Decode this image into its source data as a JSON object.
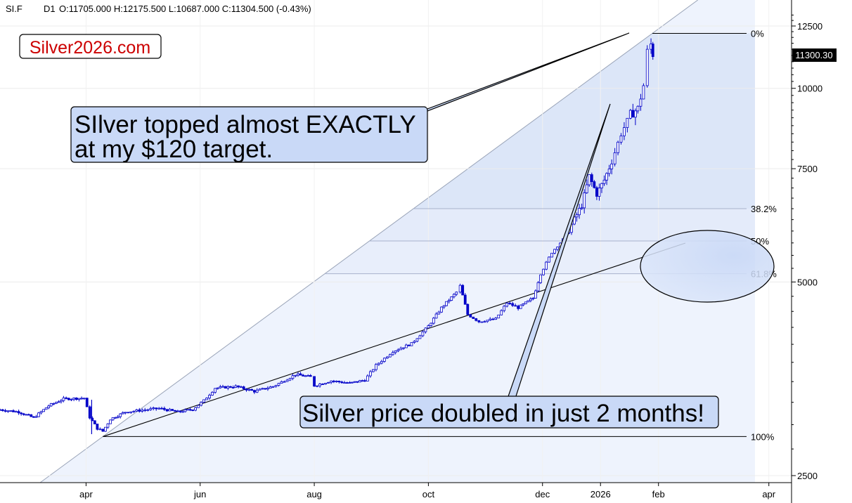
{
  "header": {
    "symbol": "SI.F",
    "timeframe": "D1",
    "ohlc": "O:11705.000  H:12175.500  L:10687.000  C:11304.500  (-0.43%)"
  },
  "brand": "Silver2026.com",
  "current_price": "11300.30",
  "annotations": [
    {
      "line1": "SIlver topped almost EXACTLY",
      "line2": "at my $120 target."
    },
    {
      "line1": "Silver price doubled in just 2 months!"
    }
  ],
  "fib_levels": [
    {
      "label": "0%",
      "price": 12175.5
    },
    {
      "label": "38.2%",
      "price": 6500
    },
    {
      "label": "50%",
      "price": 5790
    },
    {
      "label": "61.8%",
      "price": 5150
    },
    {
      "label": "100%",
      "price": 2875
    }
  ],
  "chart_data": {
    "type": "candlestick",
    "y_scale": "log",
    "ylim": [
      2440,
      13300
    ],
    "y_ticks": [
      {
        "value": 2500,
        "label": "2500"
      },
      {
        "value": 5000,
        "label": "5000"
      },
      {
        "value": 7500,
        "label": "7500"
      },
      {
        "value": 10000,
        "label": "10000"
      },
      {
        "value": 12500,
        "label": "12500"
      }
    ],
    "x_ticks": [
      {
        "date": "2025-04-01",
        "label": "apr"
      },
      {
        "date": "2025-06-01",
        "label": "jun"
      },
      {
        "date": "2025-08-01",
        "label": "aug"
      },
      {
        "date": "2025-10-01",
        "label": "oct"
      },
      {
        "date": "2025-12-01",
        "label": "dec"
      },
      {
        "date": "2026-01-01",
        "label": "2026"
      },
      {
        "date": "2026-02-01",
        "label": "feb"
      },
      {
        "date": "2026-04-01",
        "label": "apr"
      }
    ],
    "xlim": [
      "2025-02-14",
      "2026-04-12"
    ],
    "series": [
      {
        "values": [
          [
            "2025-02-14",
            3165
          ],
          [
            "2025-02-24",
            3140
          ],
          [
            "2025-03-04",
            3075
          ],
          [
            "2025-03-12",
            3210
          ],
          [
            "2025-03-20",
            3290
          ],
          [
            "2025-03-31",
            3300
          ],
          [
            "2025-04-03",
            3080
          ],
          [
            "2025-04-07",
            2960
          ],
          [
            "2025-04-10",
            2930
          ],
          [
            "2025-04-14",
            3060
          ],
          [
            "2025-04-22",
            3140
          ],
          [
            "2025-05-01",
            3160
          ],
          [
            "2025-05-10",
            3180
          ],
          [
            "2025-05-20",
            3140
          ],
          [
            "2025-05-28",
            3170
          ],
          [
            "2025-06-03",
            3270
          ],
          [
            "2025-06-09",
            3420
          ],
          [
            "2025-06-20",
            3440
          ],
          [
            "2025-06-30",
            3380
          ],
          [
            "2025-07-10",
            3440
          ],
          [
            "2025-07-22",
            3590
          ],
          [
            "2025-07-30",
            3560
          ],
          [
            "2025-08-01",
            3450
          ],
          [
            "2025-08-10",
            3510
          ],
          [
            "2025-08-20",
            3480
          ],
          [
            "2025-08-28",
            3520
          ],
          [
            "2025-09-03",
            3710
          ],
          [
            "2025-09-12",
            3900
          ],
          [
            "2025-09-22",
            4010
          ],
          [
            "2025-10-01",
            4270
          ],
          [
            "2025-10-08",
            4560
          ],
          [
            "2025-10-16",
            4820
          ],
          [
            "2025-10-18",
            4930
          ],
          [
            "2025-10-22",
            4450
          ],
          [
            "2025-10-28",
            4340
          ],
          [
            "2025-11-06",
            4380
          ],
          [
            "2025-11-12",
            4640
          ],
          [
            "2025-11-18",
            4560
          ],
          [
            "2025-11-26",
            4720
          ],
          [
            "2025-11-30",
            5150
          ],
          [
            "2025-12-06",
            5560
          ],
          [
            "2025-12-12",
            5820
          ],
          [
            "2025-12-18",
            6250
          ],
          [
            "2025-12-22",
            6580
          ],
          [
            "2025-12-26",
            7300
          ],
          [
            "2025-12-30",
            6850
          ],
          [
            "2026-01-03",
            7200
          ],
          [
            "2026-01-07",
            7700
          ],
          [
            "2026-01-12",
            8500
          ],
          [
            "2026-01-17",
            9100
          ],
          [
            "2026-01-21",
            9300
          ],
          [
            "2026-01-24",
            10100
          ],
          [
            "2026-01-26",
            11400
          ],
          [
            "2026-01-28",
            11705
          ],
          [
            "2026-01-29",
            11300
          ]
        ]
      }
    ]
  }
}
